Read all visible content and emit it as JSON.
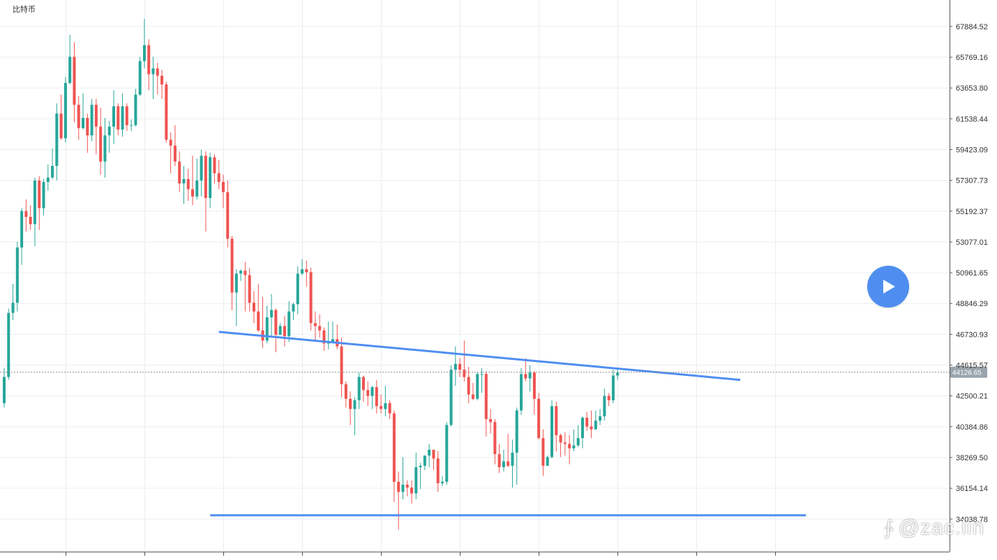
{
  "symbol": "比特币",
  "current_price_label": "44126.65",
  "watermark": {
    "icon": "zdm-logo-icon",
    "icon_glyph": "∱",
    "text": "@zac.lin"
  },
  "colors": {
    "up": "#26a69a",
    "down": "#ef5350",
    "grid": "#e9eef2",
    "trendline": "#4f8ef0",
    "axis_text": "#333333",
    "price_tag_bg": "#9aa4ad"
  },
  "chart_data": {
    "type": "candlestick",
    "title": "",
    "y_axis_position": "right",
    "y_ticks": [
      67884.52,
      65769.16,
      63653.8,
      61538.44,
      59423.09,
      57307.73,
      55192.37,
      53077.01,
      50961.65,
      48846.29,
      46730.93,
      44615.57,
      42500.21,
      40384.86,
      38269.5,
      36154.14,
      34038.78
    ],
    "ylim": [
      31800,
      69700
    ],
    "grid": true,
    "current_price": 44126.65,
    "candles": [
      [
        42000,
        43800,
        44400,
        41700
      ],
      [
        43800,
        48200,
        48500,
        43600
      ],
      [
        48200,
        48900,
        50200,
        47700
      ],
      [
        48900,
        52700,
        53100,
        48300
      ],
      [
        52700,
        55200,
        55400,
        51500
      ],
      [
        55200,
        54800,
        56000,
        53800
      ],
      [
        54800,
        54300,
        55600,
        53900
      ],
      [
        54300,
        57300,
        57500,
        52800
      ],
      [
        57300,
        55400,
        57600,
        53900
      ],
      [
        55400,
        57200,
        57400,
        54900
      ],
      [
        57200,
        57500,
        58400,
        56600
      ],
      [
        57500,
        58300,
        59500,
        57400
      ],
      [
        58300,
        61900,
        62600,
        57300
      ],
      [
        61900,
        60200,
        63200,
        60100
      ],
      [
        60200,
        64000,
        64400,
        59900
      ],
      [
        64000,
        65800,
        67300,
        63900
      ],
      [
        65800,
        62500,
        66800,
        61300
      ],
      [
        62500,
        60900,
        63100,
        60100
      ],
      [
        60900,
        61600,
        63300,
        60800
      ],
      [
        61600,
        60400,
        61900,
        59200
      ],
      [
        60400,
        62500,
        62900,
        60000
      ],
      [
        62500,
        61000,
        62900,
        59100
      ],
      [
        61000,
        58600,
        62300,
        57700
      ],
      [
        58600,
        60400,
        61600,
        57500
      ],
      [
        60400,
        61000,
        61400,
        59200
      ],
      [
        61000,
        62400,
        63500,
        59800
      ],
      [
        62400,
        60800,
        62600,
        60400
      ],
      [
        60800,
        62400,
        63300,
        60300
      ],
      [
        62400,
        61100,
        62600,
        60700
      ],
      [
        61100,
        61100,
        61500,
        60700
      ],
      [
        61100,
        63200,
        63600,
        61000
      ],
      [
        63200,
        65500,
        65800,
        63100
      ],
      [
        65500,
        66600,
        68400,
        65000
      ],
      [
        66600,
        64600,
        67000,
        63500
      ],
      [
        64600,
        65000,
        65800,
        62900
      ],
      [
        65000,
        64500,
        65400,
        63200
      ],
      [
        64500,
        63900,
        64900,
        62900
      ],
      [
        63900,
        60100,
        64100,
        59900
      ],
      [
        60100,
        59700,
        60600,
        57800
      ],
      [
        59700,
        58600,
        61100,
        58300
      ],
      [
        58600,
        57100,
        59300,
        56500
      ],
      [
        57100,
        57400,
        58300,
        55700
      ],
      [
        57400,
        56700,
        58100,
        55900
      ],
      [
        56700,
        56200,
        59000,
        55600
      ],
      [
        56200,
        57300,
        58800,
        56000
      ],
      [
        57300,
        59000,
        59400,
        56200
      ],
      [
        59000,
        56100,
        59300,
        53800
      ],
      [
        56100,
        58900,
        59200,
        55400
      ],
      [
        58900,
        57800,
        59100,
        57100
      ],
      [
        57800,
        57200,
        58700,
        56700
      ],
      [
        57200,
        56500,
        57700,
        55400
      ],
      [
        56500,
        53300,
        57300,
        52700
      ],
      [
        53300,
        49600,
        53500,
        48400
      ],
      [
        49600,
        50900,
        51200,
        47300
      ],
      [
        50900,
        51100,
        51200,
        50400
      ],
      [
        51100,
        50800,
        51700,
        48300
      ],
      [
        50800,
        48900,
        51300,
        48300
      ],
      [
        48900,
        48300,
        49700,
        47500
      ],
      [
        48300,
        47000,
        50200,
        46900
      ],
      [
        47000,
        46300,
        49300,
        45800
      ],
      [
        46300,
        47900,
        48700,
        46100
      ],
      [
        47900,
        48400,
        49500,
        46600
      ],
      [
        48400,
        46700,
        48500,
        45500
      ],
      [
        46700,
        47300,
        47500,
        46700
      ],
      [
        47300,
        46600,
        48000,
        45900
      ],
      [
        46600,
        48300,
        49000,
        46200
      ],
      [
        48300,
        48800,
        48900,
        47700
      ],
      [
        48800,
        50900,
        51400,
        48100
      ],
      [
        50900,
        51200,
        51900,
        50800
      ],
      [
        51200,
        51000,
        51800,
        50000
      ],
      [
        51000,
        47500,
        51300,
        47000
      ],
      [
        47500,
        47300,
        48300,
        46200
      ],
      [
        47300,
        47000,
        48100,
        46500
      ],
      [
        47000,
        46100,
        47200,
        45600
      ],
      [
        46100,
        46200,
        47600,
        45700
      ],
      [
        46200,
        46400,
        47600,
        46100
      ],
      [
        46400,
        45900,
        47400,
        45700
      ],
      [
        45900,
        43300,
        46500,
        42400
      ],
      [
        43300,
        42300,
        43500,
        41700
      ],
      [
        42300,
        41600,
        42800,
        40500
      ],
      [
        41600,
        42200,
        42400,
        39800
      ],
      [
        42200,
        43800,
        44100,
        41600
      ],
      [
        43800,
        42900,
        43900,
        42100
      ],
      [
        42900,
        42500,
        43500,
        41800
      ],
      [
        42500,
        43100,
        43200,
        41600
      ],
      [
        43100,
        41800,
        43600,
        41300
      ],
      [
        41800,
        41600,
        42600,
        41300
      ],
      [
        41600,
        42000,
        43200,
        41100
      ],
      [
        42000,
        41300,
        42200,
        40900
      ],
      [
        41300,
        36600,
        41500,
        35200
      ],
      [
        36600,
        35900,
        37300,
        33300
      ],
      [
        35900,
        36400,
        38300,
        35400
      ],
      [
        36400,
        36200,
        36700,
        35600
      ],
      [
        36200,
        35800,
        36700,
        35100
      ],
      [
        35800,
        37600,
        38600,
        35400
      ],
      [
        37600,
        37700,
        37900,
        36100
      ],
      [
        37700,
        38400,
        38400,
        37400
      ],
      [
        38400,
        38800,
        39200,
        37600
      ],
      [
        38800,
        38200,
        38800,
        37400
      ],
      [
        38200,
        36500,
        38700,
        35900
      ],
      [
        36500,
        36600,
        37000,
        36300
      ],
      [
        36600,
        40500,
        40700,
        36400
      ],
      [
        40500,
        44300,
        44600,
        40400
      ],
      [
        44300,
        44700,
        45900,
        43200
      ],
      [
        44700,
        44300,
        45100,
        43800
      ],
      [
        44300,
        43800,
        46300,
        43500
      ],
      [
        43800,
        42600,
        44500,
        42000
      ],
      [
        42600,
        42300,
        43400,
        42200
      ],
      [
        42300,
        44000,
        44100,
        42200
      ],
      [
        44000,
        44000,
        44400,
        42700
      ],
      [
        44000,
        40900,
        44200,
        39700
      ],
      [
        40900,
        40700,
        41600,
        39900
      ],
      [
        40700,
        38500,
        40900,
        37800
      ],
      [
        38500,
        37600,
        39200,
        37200
      ],
      [
        37600,
        38000,
        38800,
        37300
      ],
      [
        38000,
        37700,
        39900,
        37600
      ],
      [
        37700,
        38600,
        39500,
        36200
      ],
      [
        38600,
        41500,
        41700,
        36400
      ],
      [
        41500,
        44000,
        44400,
        41200
      ],
      [
        44000,
        43700,
        45100,
        43500
      ],
      [
        43700,
        44100,
        44600,
        42800
      ],
      [
        44100,
        42300,
        44200,
        41200
      ],
      [
        42300,
        39600,
        42700,
        39500
      ],
      [
        39600,
        37700,
        40200,
        37000
      ],
      [
        37700,
        38300,
        38400,
        37700
      ],
      [
        38300,
        41800,
        42200,
        38200
      ],
      [
        41800,
        39800,
        42100,
        38700
      ],
      [
        39800,
        39300,
        39900,
        38300
      ],
      [
        39300,
        39200,
        40000,
        38400
      ],
      [
        39200,
        38900,
        39800,
        37800
      ],
      [
        38900,
        39100,
        40200,
        38700
      ],
      [
        39100,
        39600,
        40500,
        39000
      ],
      [
        39600,
        41000,
        41100,
        38900
      ],
      [
        41000,
        40400,
        41400,
        40100
      ],
      [
        40400,
        40200,
        41500,
        39600
      ],
      [
        40200,
        40800,
        41500,
        40200
      ],
      [
        40800,
        41100,
        41600,
        40500
      ],
      [
        41100,
        42500,
        43000,
        40800
      ],
      [
        42500,
        42200,
        42700,
        41800
      ],
      [
        42200,
        43900,
        44300,
        42000
      ],
      [
        43900,
        44100,
        44300,
        43600
      ]
    ],
    "trendlines": [
      {
        "name": "descending-resistance",
        "from": [
          49,
          46900
        ],
        "to": [
          168,
          43600
        ]
      },
      {
        "name": "horizontal-support",
        "from": [
          47,
          34300
        ],
        "to": [
          183,
          34300
        ]
      }
    ],
    "time_tick_candles": [
      15,
      33,
      51,
      69,
      87,
      105,
      123,
      141,
      159,
      177
    ]
  }
}
